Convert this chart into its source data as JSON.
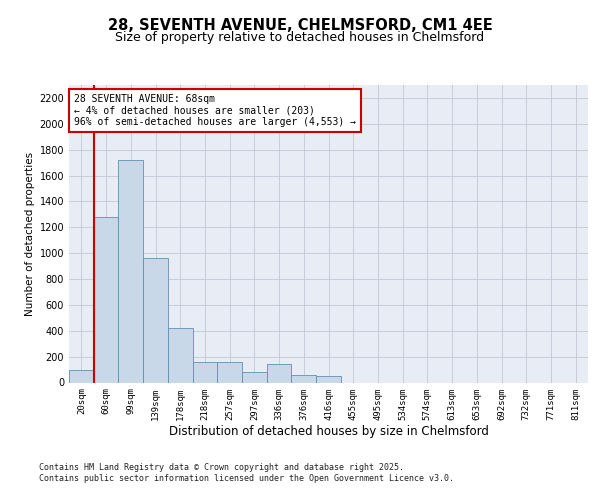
{
  "title_line1": "28, SEVENTH AVENUE, CHELMSFORD, CM1 4EE",
  "title_line2": "Size of property relative to detached houses in Chelmsford",
  "xlabel": "Distribution of detached houses by size in Chelmsford",
  "ylabel": "Number of detached properties",
  "categories": [
    "20sqm",
    "60sqm",
    "99sqm",
    "139sqm",
    "178sqm",
    "218sqm",
    "257sqm",
    "297sqm",
    "336sqm",
    "376sqm",
    "416sqm",
    "455sqm",
    "495sqm",
    "534sqm",
    "574sqm",
    "613sqm",
    "653sqm",
    "692sqm",
    "732sqm",
    "771sqm",
    "811sqm"
  ],
  "values": [
    100,
    1280,
    1720,
    960,
    420,
    160,
    160,
    80,
    140,
    60,
    50,
    0,
    0,
    0,
    0,
    0,
    0,
    0,
    0,
    0,
    0
  ],
  "bar_color": "#c8d8e8",
  "bar_edge_color": "#6090b0",
  "vline_x": 0.5,
  "vline_color": "#cc0000",
  "annotation_text": "28 SEVENTH AVENUE: 68sqm\n← 4% of detached houses are smaller (203)\n96% of semi-detached houses are larger (4,553) →",
  "annotation_box_color": "#ffffff",
  "annotation_box_edge": "#cc0000",
  "ylim": [
    0,
    2300
  ],
  "yticks": [
    0,
    200,
    400,
    600,
    800,
    1000,
    1200,
    1400,
    1600,
    1800,
    2000,
    2200
  ],
  "grid_color": "#c0c8d8",
  "bg_color": "#e8edf5",
  "footer_line1": "Contains HM Land Registry data © Crown copyright and database right 2025.",
  "footer_line2": "Contains public sector information licensed under the Open Government Licence v3.0."
}
